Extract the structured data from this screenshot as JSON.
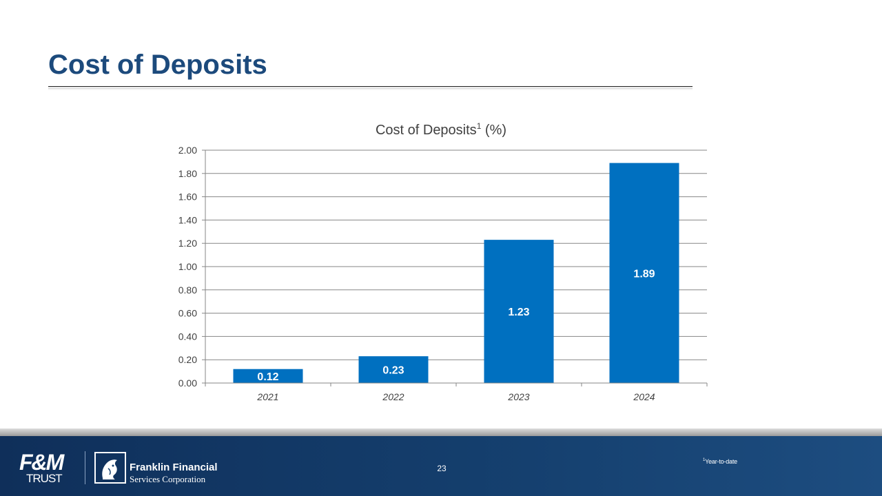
{
  "slide": {
    "title": "Cost of Deposits",
    "page_number": "23",
    "footnote_marker": "1",
    "footnote_text": "Year-to-date"
  },
  "logos": {
    "fm_mark": "F&M",
    "fm_trust": "TRUST",
    "ffsc_name": "Franklin Financial",
    "ffsc_sub": "Services Corporation"
  },
  "colors": {
    "title": "#1c4a7c",
    "bar": "#0070c0",
    "footer": "#15406f"
  },
  "chart_data": {
    "type": "bar",
    "title": "Cost of Deposits",
    "title_superscript": "1",
    "title_suffix": " (%)",
    "categories": [
      "2021",
      "2022",
      "2023",
      "2024"
    ],
    "values": [
      0.12,
      0.23,
      1.23,
      1.89
    ],
    "data_labels": [
      "0.12",
      "0.23",
      "1.23",
      "1.89"
    ],
    "yticks": [
      "0.00",
      "0.20",
      "0.40",
      "0.60",
      "0.80",
      "1.00",
      "1.20",
      "1.40",
      "1.60",
      "1.80",
      "2.00"
    ],
    "ylim": [
      0,
      2
    ],
    "xlabel": "",
    "ylabel": "",
    "grid": true
  }
}
